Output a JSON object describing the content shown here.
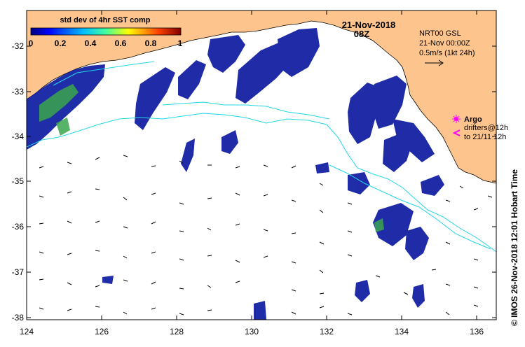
{
  "title": {
    "date": "21-Nov-2018",
    "time": "08Z"
  },
  "colorbar": {
    "title": "std dev of 4hr SST comp",
    "ticks": [
      "0",
      "0.2",
      "0.4",
      "0.6",
      "0.8",
      "1"
    ],
    "range": [
      0,
      1
    ]
  },
  "current_info": {
    "line1": "NRT00 GSL",
    "line2": "21-Nov 00:00Z",
    "line3": "0.5m/s (1kt 24h)"
  },
  "legend": {
    "argo_label": "Argo",
    "drifters_line1": "drifters@12h",
    "drifters_line2": "to 21/11 12h",
    "argo_color": "#ff00ff",
    "drifter_color": "#ff00ff"
  },
  "credit": "© IMOS 26-Nov-2018 12:01 Hobart Time",
  "axes": {
    "x_ticks": [
      "124",
      "126",
      "128",
      "130",
      "132",
      "134",
      "136"
    ],
    "y_ticks": [
      "-32",
      "-33",
      "-34",
      "-35",
      "-36",
      "-37",
      "-38"
    ],
    "x_range": [
      124,
      136.6
    ],
    "y_range": [
      -38.1,
      -31.35
    ]
  },
  "colors": {
    "land": "#fdc48e",
    "ocean": "#ffffff",
    "track": "#22d7e6",
    "sst_low": "#08169e",
    "sst_mid": "#3aa64e"
  }
}
